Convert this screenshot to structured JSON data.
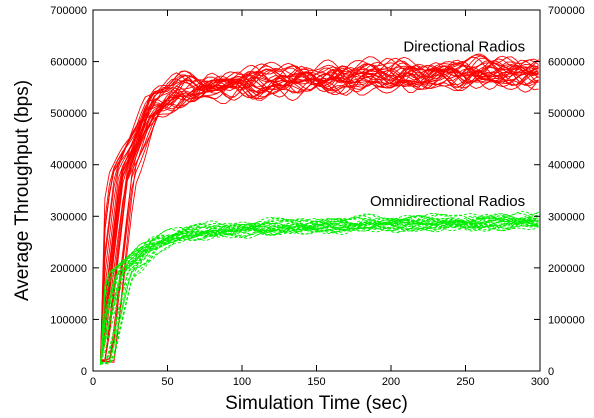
{
  "chart_data": {
    "type": "line",
    "xlabel": "Simulation Time (sec)",
    "ylabel": "Average Throughput (bps)",
    "xlim": [
      0,
      300
    ],
    "ylim": [
      0,
      700000
    ],
    "x_ticks": [
      0,
      50,
      100,
      150,
      200,
      250,
      300
    ],
    "y_ticks": [
      0,
      100000,
      200000,
      300000,
      400000,
      500000,
      600000,
      700000
    ],
    "y_tick_labels": [
      "0",
      "100000",
      "200000",
      "300000",
      "400000",
      "500000",
      "600000",
      "700000"
    ],
    "right_axis_ticks_mirrored": true,
    "grid": false,
    "legend": "none",
    "annotations": [
      {
        "text": "Directional Radios",
        "near_x": 290,
        "near_y": 620000
      },
      {
        "text": "Omnidirectional Radios",
        "near_x": 290,
        "near_y": 320000
      }
    ],
    "series": [
      {
        "name": "Directional Radios",
        "color": "#ff0000",
        "style": "solid",
        "runs": 30,
        "start": [
          5,
          20000
        ],
        "x": [
          5,
          20,
          40,
          60,
          80,
          100,
          150,
          200,
          250,
          300
        ],
        "y": [
          20000,
          380000,
          510000,
          545000,
          550000,
          555000,
          565000,
          570000,
          575000,
          578000
        ]
      },
      {
        "name": "Omnidirectional Radios",
        "color": "#00ee00",
        "style": "dashed",
        "runs": 30,
        "start": [
          5,
          15000
        ],
        "x": [
          5,
          20,
          40,
          60,
          80,
          100,
          150,
          200,
          250,
          300
        ],
        "y": [
          15000,
          190000,
          245000,
          265000,
          272000,
          276000,
          282000,
          286000,
          288000,
          290000
        ]
      }
    ]
  }
}
